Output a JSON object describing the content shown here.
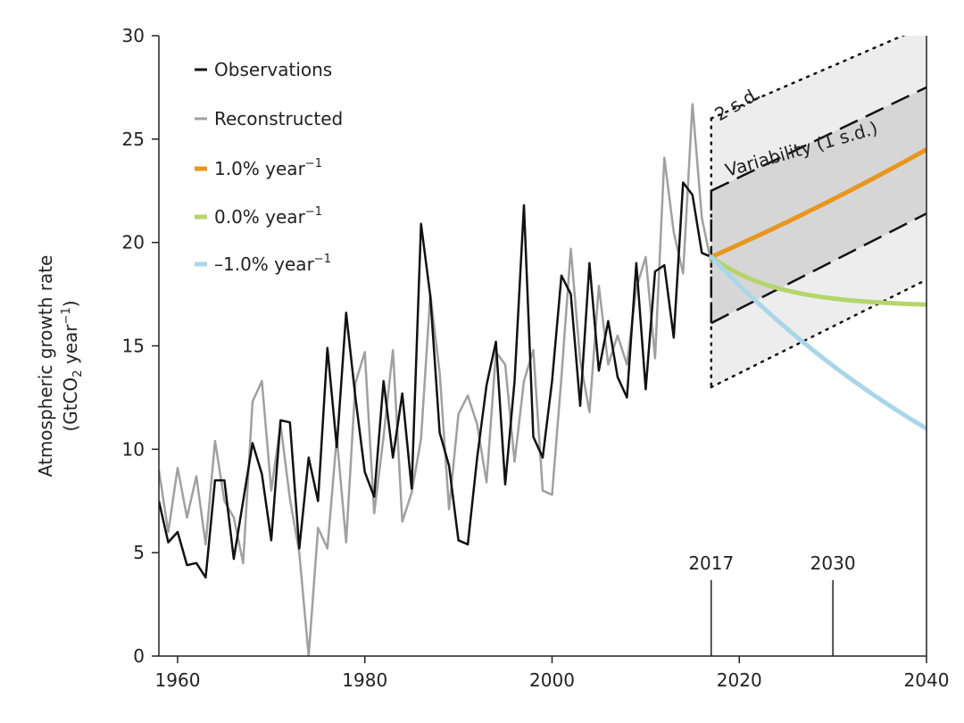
{
  "chart_data": {
    "type": "line",
    "ylabel_line1": "Atmospheric growth rate",
    "ylabel_line2": "(GtCO",
    "ylabel_sub": "2",
    "ylabel_rest": " year",
    "ylabel_sup": "−1",
    "ylabel_close": ")",
    "xlim": [
      1958,
      2040
    ],
    "ylim": [
      0,
      30
    ],
    "x_ticks": [
      1960,
      1980,
      2000,
      2020,
      2040
    ],
    "y_ticks": [
      0,
      5,
      10,
      15,
      20,
      25,
      30
    ],
    "grid": false,
    "legend_position": "top-left",
    "legend": [
      {
        "key": "obs",
        "text": "Observations",
        "sup": ""
      },
      {
        "key": "rec",
        "text": "Reconstructed",
        "sup": ""
      },
      {
        "key": "p1",
        "text": "1.0% year",
        "sup": "−1"
      },
      {
        "key": "p0",
        "text": "0.0% year",
        "sup": "−1"
      },
      {
        "key": "m1",
        "text": "–1.0% year",
        "sup": "−1"
      }
    ],
    "colors": {
      "obs": "#111111",
      "rec": "#a0a0a0",
      "p1": "#e8961e",
      "p0": "#b5d56a",
      "m1": "#a9d6e8",
      "band2": "#ededed",
      "band1": "#d6d6d6"
    },
    "annotations": {
      "two_sd": "2 s.d.",
      "variability": "Variability (1 s.d.)",
      "marker_2017": "2017",
      "marker_2030": "2030"
    },
    "markers": [
      2017,
      2030
    ],
    "observations": {
      "x": [
        1958,
        1959,
        1960,
        1961,
        1962,
        1963,
        1964,
        1965,
        1966,
        1967,
        1968,
        1969,
        1970,
        1971,
        1972,
        1973,
        1974,
        1975,
        1976,
        1977,
        1978,
        1979,
        1980,
        1981,
        1982,
        1983,
        1984,
        1985,
        1986,
        1987,
        1988,
        1989,
        1990,
        1991,
        1992,
        1993,
        1994,
        1995,
        1996,
        1997,
        1998,
        1999,
        2000,
        2001,
        2002,
        2003,
        2004,
        2005,
        2006,
        2007,
        2008,
        2009,
        2010,
        2011,
        2012,
        2013,
        2014,
        2015,
        2016,
        2017
      ],
      "y": [
        7.5,
        5.5,
        6.0,
        4.4,
        4.5,
        3.8,
        8.5,
        8.5,
        4.7,
        7.5,
        10.3,
        8.8,
        5.6,
        11.4,
        11.3,
        5.2,
        9.6,
        7.5,
        14.9,
        10.1,
        16.6,
        12.5,
        8.9,
        7.7,
        13.3,
        9.6,
        12.7,
        8.1,
        20.9,
        17.4,
        10.8,
        9.2,
        5.6,
        5.4,
        9.6,
        13.1,
        15.2,
        8.3,
        13.3,
        21.8,
        10.6,
        9.6,
        13.3,
        18.4,
        17.5,
        12.1,
        19.0,
        13.8,
        16.2,
        13.5,
        12.5,
        19.0,
        12.9,
        18.6,
        18.9,
        15.4,
        22.9,
        22.3,
        19.5,
        19.3
      ]
    },
    "reconstructed": {
      "x": [
        1958,
        1959,
        1960,
        1961,
        1962,
        1963,
        1964,
        1965,
        1966,
        1967,
        1968,
        1969,
        1970,
        1971,
        1972,
        1973,
        1974,
        1975,
        1976,
        1977,
        1978,
        1979,
        1980,
        1981,
        1982,
        1983,
        1984,
        1985,
        1986,
        1987,
        1988,
        1989,
        1990,
        1991,
        1992,
        1993,
        1994,
        1995,
        1996,
        1997,
        1998,
        1999,
        2000,
        2001,
        2002,
        2003,
        2004,
        2005,
        2006,
        2007,
        2008,
        2009,
        2010,
        2011,
        2012,
        2013,
        2014,
        2015,
        2016,
        2017
      ],
      "y": [
        9.0,
        6.0,
        9.1,
        6.7,
        8.7,
        5.4,
        10.4,
        7.5,
        6.7,
        4.5,
        12.3,
        13.3,
        8.0,
        11.2,
        7.6,
        5.0,
        0.0,
        6.2,
        5.2,
        10.6,
        5.5,
        13.2,
        14.7,
        6.9,
        10.6,
        14.8,
        6.5,
        7.9,
        10.5,
        17.5,
        13.7,
        7.1,
        11.7,
        12.6,
        11.2,
        8.4,
        14.7,
        14.1,
        9.4,
        13.3,
        14.8,
        8.0,
        7.8,
        13.5,
        19.7,
        14.3,
        11.8,
        17.9,
        14.1,
        15.5,
        14.1,
        17.8,
        19.3,
        14.4,
        24.1,
        20.5,
        18.5,
        26.7,
        21.2,
        19.0
      ]
    },
    "projections": {
      "x_start": 2017,
      "x_end": 2040,
      "start_value": 19.3,
      "growth_rates_percent": [
        1.0,
        0.0,
        -1.0
      ],
      "values_2040": [
        24.5,
        16.9,
        11.0
      ]
    },
    "bands": {
      "x_start": 2017,
      "x_end": 2040,
      "one_sd_upper": [
        22.5,
        27.5
      ],
      "one_sd_lower": [
        16.1,
        21.4
      ],
      "two_sd_upper": [
        26.0,
        30.5
      ],
      "two_sd_lower": [
        13.0,
        18.2
      ]
    }
  }
}
